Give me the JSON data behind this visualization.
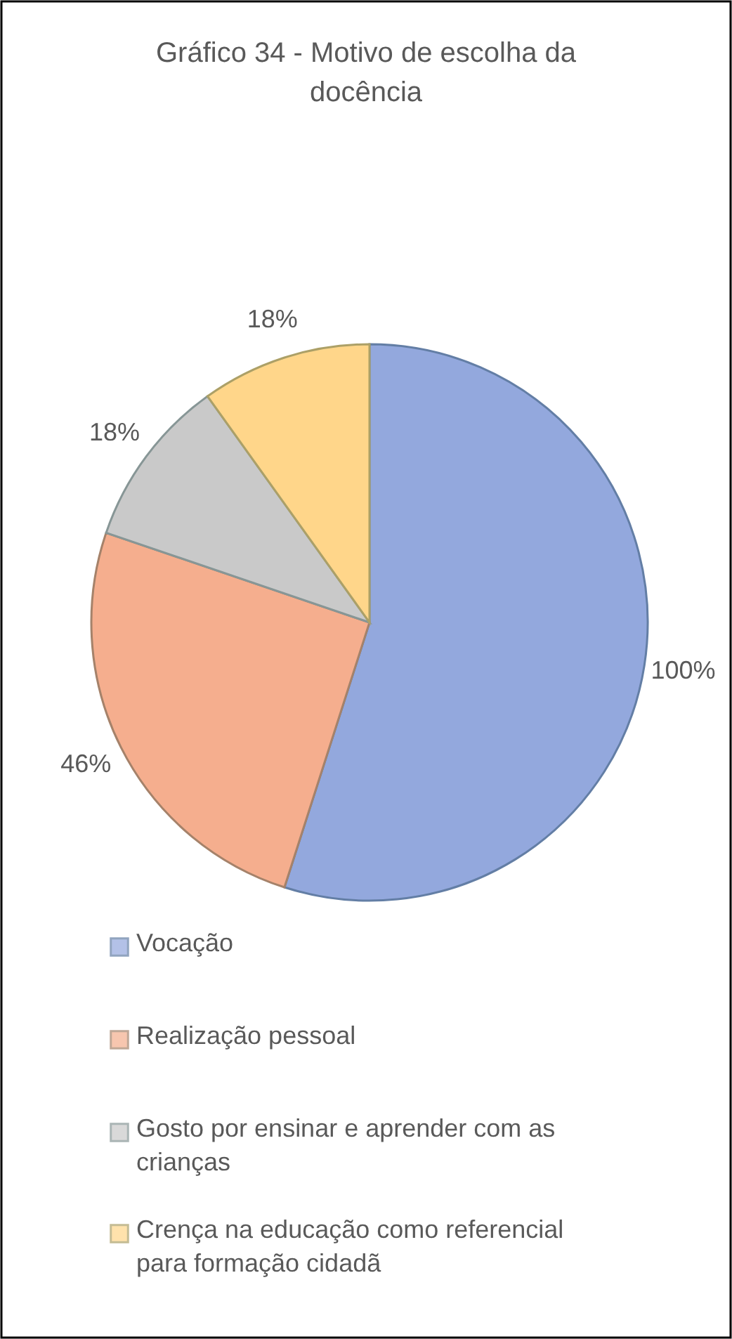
{
  "chart_data": {
    "type": "pie",
    "title": "Gráfico 34  - Motivo de escolha da docência",
    "categories": [
      "Vocação",
      "Realização pessoal",
      "Gosto por ensinar e aprender com as crianças",
      "Crença na educação como referencial para formação cidadã"
    ],
    "values": [
      100,
      46,
      18,
      18
    ],
    "value_labels": [
      "100%",
      "46%",
      "18%",
      "18%"
    ],
    "colors": [
      "#93a8dd",
      "#f5ae8e",
      "#c9c9c9",
      "#ffd68a"
    ],
    "legend": "bottom"
  }
}
